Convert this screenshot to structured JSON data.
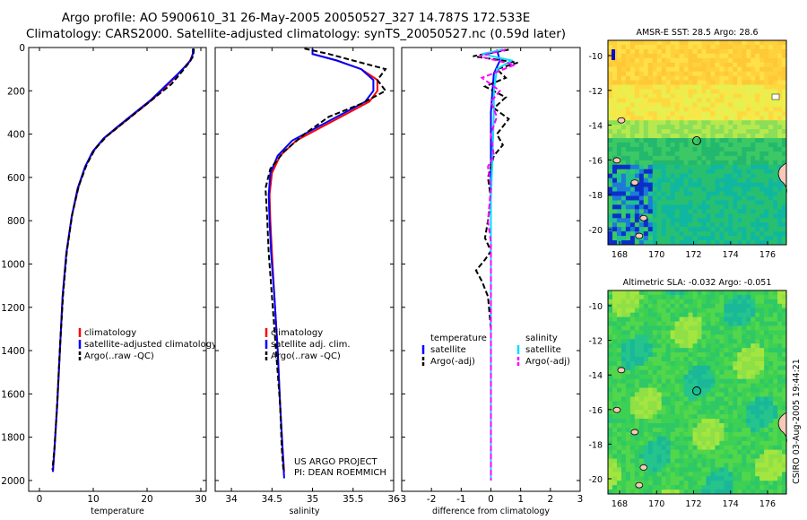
{
  "title": {
    "line1": "Argo profile: AO 5900610_31 26-May-2005 20050527_327 14.787S 172.533E",
    "line2": "Climatology: CARS2000. Satellite-adjusted climatology: synTS_20050527.nc (0.59d later)"
  },
  "credit": "CSIRO 03-Aug-2005 19:44:21",
  "colors": {
    "climatology": "#ff0000",
    "satellite": "#0000ff",
    "argo": "#000000",
    "satellite_salt": "#00e0ff",
    "argo_salt": "#ff00ff"
  },
  "chart_data": [
    {
      "id": "temperature",
      "type": "line",
      "xlabel": "temperature",
      "ylim": [
        0,
        2050
      ],
      "xlim": [
        -2,
        31
      ],
      "yticks": [
        0,
        200,
        400,
        600,
        800,
        1000,
        1200,
        1400,
        1600,
        1800,
        2000
      ],
      "xticks": [
        0,
        10,
        20,
        30
      ],
      "legend": [
        "climatology",
        "satellite-adjusted climatology",
        "Argo(..raw -QC)"
      ],
      "series": [
        {
          "name": "climatology",
          "color": "#ff0000",
          "dash": false,
          "points": [
            [
              28.6,
              5
            ],
            [
              28.5,
              30
            ],
            [
              28.0,
              60
            ],
            [
              27.0,
              90
            ],
            [
              25.5,
              130
            ],
            [
              23.5,
              180
            ],
            [
              21.0,
              240
            ],
            [
              18.0,
              300
            ],
            [
              15.0,
              360
            ],
            [
              12.0,
              420
            ],
            [
              10.0,
              480
            ],
            [
              8.5,
              550
            ],
            [
              7.2,
              650
            ],
            [
              6.0,
              780
            ],
            [
              5.0,
              950
            ],
            [
              4.3,
              1150
            ],
            [
              3.8,
              1400
            ],
            [
              3.3,
              1650
            ],
            [
              2.8,
              1850
            ],
            [
              2.5,
              1960
            ]
          ]
        },
        {
          "name": "satellite-adjusted climatology",
          "color": "#0000ff",
          "dash": false,
          "points": [
            [
              28.5,
              5
            ],
            [
              28.5,
              30
            ],
            [
              28.1,
              60
            ],
            [
              27.0,
              90
            ],
            [
              25.4,
              130
            ],
            [
              23.3,
              180
            ],
            [
              20.8,
              240
            ],
            [
              17.8,
              300
            ],
            [
              14.8,
              360
            ],
            [
              11.9,
              420
            ],
            [
              9.9,
              480
            ],
            [
              8.5,
              550
            ],
            [
              7.1,
              650
            ],
            [
              6.0,
              780
            ],
            [
              5.0,
              950
            ],
            [
              4.3,
              1150
            ],
            [
              3.8,
              1400
            ],
            [
              3.3,
              1650
            ],
            [
              2.8,
              1850
            ],
            [
              2.5,
              1960
            ]
          ]
        },
        {
          "name": "Argo(..raw -QC)",
          "color": "#000000",
          "dash": true,
          "points": [
            [
              28.7,
              5
            ],
            [
              28.6,
              40
            ],
            [
              27.5,
              80
            ],
            [
              26.2,
              120
            ],
            [
              24.5,
              170
            ],
            [
              21.5,
              230
            ],
            [
              18.5,
              290
            ],
            [
              15.5,
              350
            ],
            [
              12.5,
              410
            ],
            [
              10.3,
              470
            ],
            [
              8.8,
              540
            ],
            [
              7.3,
              640
            ],
            [
              6.1,
              770
            ],
            [
              5.1,
              940
            ],
            [
              4.4,
              1140
            ],
            [
              3.8,
              1390
            ],
            [
              3.3,
              1640
            ],
            [
              2.8,
              1850
            ],
            [
              2.4,
              1950
            ]
          ]
        }
      ]
    },
    {
      "id": "salinity",
      "type": "line",
      "xlabel": "salinity",
      "ylim": [
        0,
        2050
      ],
      "xlim": [
        33.8,
        36
      ],
      "xticks": [
        34,
        34.5,
        35,
        35.5,
        36
      ],
      "legend": [
        "climatology",
        "satellite adj. clim.",
        "Argo(..raw -QC)"
      ],
      "series": [
        {
          "name": "climatology",
          "color": "#ff0000",
          "dash": false,
          "points": [
            [
              35.0,
              5
            ],
            [
              35.0,
              30
            ],
            [
              35.3,
              60
            ],
            [
              35.6,
              100
            ],
            [
              35.8,
              150
            ],
            [
              35.8,
              200
            ],
            [
              35.7,
              250
            ],
            [
              35.4,
              310
            ],
            [
              35.1,
              370
            ],
            [
              34.8,
              430
            ],
            [
              34.6,
              500
            ],
            [
              34.5,
              580
            ],
            [
              34.47,
              680
            ],
            [
              34.48,
              800
            ],
            [
              34.5,
              950
            ],
            [
              34.53,
              1150
            ],
            [
              34.57,
              1400
            ],
            [
              34.6,
              1650
            ],
            [
              34.63,
              1850
            ],
            [
              34.65,
              1960
            ]
          ]
        },
        {
          "name": "satellite adj. clim.",
          "color": "#0000ff",
          "dash": false,
          "points": [
            [
              35.0,
              5
            ],
            [
              35.0,
              30
            ],
            [
              35.3,
              60
            ],
            [
              35.6,
              100
            ],
            [
              35.75,
              150
            ],
            [
              35.75,
              200
            ],
            [
              35.65,
              250
            ],
            [
              35.35,
              310
            ],
            [
              35.05,
              370
            ],
            [
              34.75,
              430
            ],
            [
              34.57,
              500
            ],
            [
              34.48,
              580
            ],
            [
              34.46,
              680
            ],
            [
              34.47,
              800
            ],
            [
              34.49,
              950
            ],
            [
              34.53,
              1150
            ],
            [
              34.57,
              1400
            ],
            [
              34.6,
              1650
            ],
            [
              34.63,
              1850
            ],
            [
              34.65,
              1990
            ]
          ]
        },
        {
          "name": "Argo(..raw -QC)",
          "color": "#000000",
          "dash": true,
          "points": [
            [
              34.9,
              5
            ],
            [
              35.2,
              30
            ],
            [
              35.5,
              60
            ],
            [
              35.9,
              100
            ],
            [
              35.8,
              150
            ],
            [
              35.9,
              200
            ],
            [
              35.6,
              260
            ],
            [
              35.2,
              320
            ],
            [
              34.9,
              400
            ],
            [
              34.65,
              480
            ],
            [
              34.48,
              560
            ],
            [
              34.42,
              650
            ],
            [
              34.44,
              780
            ],
            [
              34.46,
              950
            ],
            [
              34.5,
              1150
            ],
            [
              34.55,
              1400
            ],
            [
              34.6,
              1650
            ],
            [
              34.62,
              1850
            ],
            [
              34.64,
              1950
            ]
          ]
        }
      ]
    },
    {
      "id": "difference",
      "type": "line",
      "xlabel": "difference from climatology",
      "ylim": [
        0,
        2050
      ],
      "xlim": [
        -3,
        3
      ],
      "xticks": [
        -3,
        -2,
        -1,
        0,
        1,
        2,
        3
      ],
      "legend_left": {
        "heading": "temperature",
        "items": [
          "satellite",
          "Argo(-adj)"
        ]
      },
      "legend_right": {
        "heading": "salinity",
        "items": [
          "satellite",
          "Argo(-adj)"
        ]
      },
      "series": [
        {
          "name": "temperature satellite",
          "color": "#0000ff",
          "dash": false,
          "points": [
            [
              0.2,
              10
            ],
            [
              0.3,
              60
            ],
            [
              0.1,
              120
            ],
            [
              0.05,
              200
            ],
            [
              0,
              300
            ],
            [
              0,
              500
            ],
            [
              0,
              1000
            ],
            [
              0,
              1500
            ],
            [
              0,
              2000
            ]
          ]
        },
        {
          "name": "temperature Argo(-adj)",
          "color": "#000000",
          "dash": true,
          "points": [
            [
              0.6,
              10
            ],
            [
              -0.6,
              40
            ],
            [
              0.9,
              70
            ],
            [
              0.2,
              100
            ],
            [
              0.5,
              140
            ],
            [
              -0.2,
              180
            ],
            [
              0.5,
              230
            ],
            [
              0.1,
              280
            ],
            [
              0.6,
              330
            ],
            [
              0.2,
              400
            ],
            [
              0.4,
              450
            ],
            [
              0.1,
              500
            ],
            [
              -0.1,
              600
            ],
            [
              0,
              700
            ],
            [
              -0.1,
              800
            ],
            [
              -0.2,
              880
            ],
            [
              0,
              940
            ],
            [
              -0.2,
              980
            ],
            [
              -0.5,
              1030
            ],
            [
              -0.3,
              1080
            ],
            [
              -0.1,
              1150
            ],
            [
              0,
              1300
            ],
            [
              0,
              1500
            ],
            [
              0,
              2000
            ]
          ]
        },
        {
          "name": "salinity satellite",
          "color": "#00e0ff",
          "dash": false,
          "points": [
            [
              0.4,
              10
            ],
            [
              -0.3,
              30
            ],
            [
              0.7,
              60
            ],
            [
              0.2,
              100
            ],
            [
              0.1,
              200
            ],
            [
              0.1,
              300
            ],
            [
              0.05,
              500
            ],
            [
              0,
              700
            ],
            [
              0,
              1000
            ],
            [
              0,
              1500
            ],
            [
              0,
              2000
            ]
          ]
        },
        {
          "name": "salinity Argo(-adj)",
          "color": "#ff00ff",
          "dash": true,
          "points": [
            [
              0.5,
              10
            ],
            [
              -0.4,
              40
            ],
            [
              0.8,
              80
            ],
            [
              -0.3,
              140
            ],
            [
              0.3,
              200
            ],
            [
              0,
              250
            ],
            [
              0.2,
              320
            ],
            [
              0,
              400
            ],
            [
              0.1,
              500
            ],
            [
              -0.1,
              550
            ],
            [
              0,
              650
            ],
            [
              -0.1,
              800
            ],
            [
              0,
              900
            ],
            [
              0,
              1500
            ],
            [
              0,
              2000
            ]
          ]
        }
      ]
    }
  ],
  "annotation": {
    "line1": "US ARGO PROJECT",
    "line2": "PI: DEAN ROEMMICH"
  },
  "maps": [
    {
      "id": "sst",
      "title": "AMSR-E SST: 28.5 Argo: 28.6",
      "yticks": [
        "-10",
        "-12",
        "-14",
        "-16",
        "-18",
        "-20"
      ],
      "xticks": [
        "168",
        "170",
        "172",
        "174",
        "176"
      ]
    },
    {
      "id": "sla",
      "title": "Altimetric SLA: -0.032 Argo: -0.051",
      "yticks": [
        "-10",
        "-12",
        "-14",
        "-16",
        "-18",
        "-20"
      ],
      "xticks": [
        "168",
        "170",
        "172",
        "174",
        "176"
      ]
    }
  ]
}
